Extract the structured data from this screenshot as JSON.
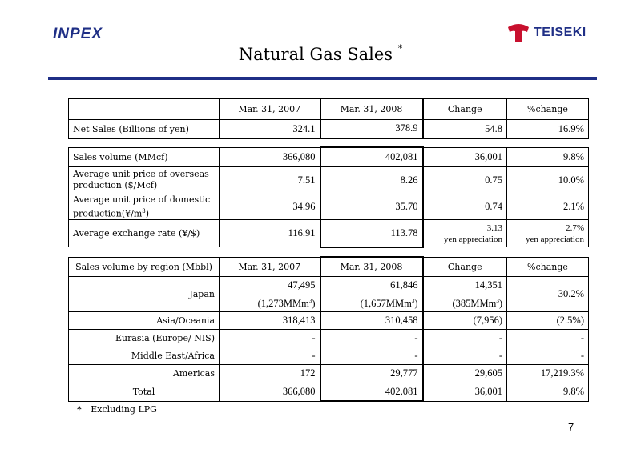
{
  "header": {
    "logo_left": "INPEX",
    "logo_right": "TEISEKI",
    "title": "Natural Gas Sales",
    "title_mark": "*",
    "brand_color": "#1f2f86",
    "logo_red": "#c8102e"
  },
  "table1": {
    "columns": [
      "",
      "Mar. 31, 2007",
      "Mar. 31, 2008",
      "Change",
      "%change"
    ],
    "rows": [
      {
        "label": "Net Sales (Billions of yen)",
        "v2007": "324.1",
        "v2008": "378.9",
        "change": "54.8",
        "pct": "16.9%"
      }
    ]
  },
  "table2": {
    "rows": [
      {
        "label": "Sales volume (MMcf)",
        "v2007": "366,080",
        "v2008": "402,081",
        "change": "36,001",
        "pct": "9.8%"
      },
      {
        "label": "Average unit price of overseas production ($/Mcf)",
        "v2007": "7.51",
        "v2008": "8.26",
        "change": "0.75",
        "pct": "10.0%"
      },
      {
        "label": "Average unit price of domestic production(¥/m",
        "label_sup": "3",
        "label_tail": ")",
        "v2007": "34.96",
        "v2008": "35.70",
        "change": "0.74",
        "pct": "2.1%"
      },
      {
        "label": "Average exchange rate (¥/$)",
        "v2007": "116.91",
        "v2008": "113.78",
        "change": "3.13",
        "change_note": "yen appreciation",
        "pct": "2.7%",
        "pct_note": "yen appreciation"
      }
    ]
  },
  "table3": {
    "columns": [
      "Sales volume by region (Mbbl)",
      "Mar. 31, 2007",
      "Mar. 31, 2008",
      "Change",
      "%change"
    ],
    "japan": {
      "label": "Japan",
      "v2007": "47,495",
      "v2007_sub": "(1,273MMm",
      "v2008": "61,846",
      "v2008_sub": "(1,657MMm",
      "change": "14,351",
      "change_sub": "(385MMm",
      "sup": "3",
      "close": ")",
      "pct": "30.2%"
    },
    "rows": [
      {
        "label": "Asia/Oceania",
        "v2007": "318,413",
        "v2008": "310,458",
        "change": "(7,956)",
        "pct": "(2.5%)"
      },
      {
        "label": "Eurasia (Europe/ NIS)",
        "v2007": "-",
        "v2008": "-",
        "change": "-",
        "pct": "-"
      },
      {
        "label": "Middle East/Africa",
        "v2007": "-",
        "v2008": "-",
        "change": "-",
        "pct": "-"
      },
      {
        "label": "Americas",
        "v2007": "172",
        "v2008": "29,777",
        "change": "29,605",
        "pct": "17,219.3%"
      },
      {
        "label": "Total",
        "v2007": "366,080",
        "v2008": "402,081",
        "change": "36,001",
        "pct": "9.8%"
      }
    ]
  },
  "footnote": {
    "mark": "*",
    "text": "Excluding LPG"
  },
  "page_number": "7"
}
